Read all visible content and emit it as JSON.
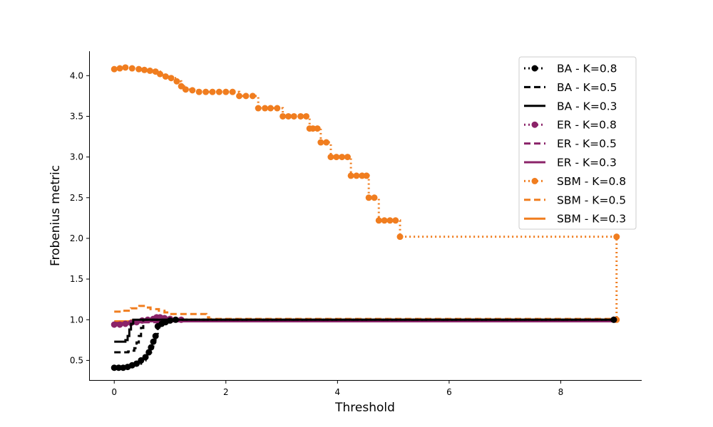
{
  "chart_data": {
    "type": "line",
    "title": "",
    "xlabel": "Threshold",
    "ylabel": "Frobenius metric",
    "xlim": [
      -0.45,
      9.45
    ],
    "ylim": [
      0.25,
      4.3
    ],
    "xticks": [
      0,
      2,
      4,
      6,
      8
    ],
    "yticks": [
      0.5,
      1.0,
      1.5,
      2.0,
      2.5,
      3.0,
      3.5,
      4.0
    ],
    "ytick_labels": [
      "0.5",
      "1.0",
      "1.5",
      "2.0",
      "2.5",
      "3.0",
      "3.5",
      "4.0"
    ],
    "grid": false,
    "legend_position": "top-right",
    "colors": {
      "BA": "#000000",
      "ER": "#8b2369",
      "SBM": "#f07d1f"
    },
    "series": [
      {
        "name": "BA - K=0.8",
        "color": "#000000",
        "style": "dotted",
        "marker": true,
        "x": [
          0,
          0.08,
          0.16,
          0.24,
          0.32,
          0.4,
          0.48,
          0.56,
          0.62,
          0.66,
          0.7,
          0.74,
          0.78,
          0.85,
          0.92,
          1.0,
          1.1,
          8.95
        ],
        "y": [
          0.41,
          0.41,
          0.41,
          0.42,
          0.44,
          0.46,
          0.5,
          0.54,
          0.6,
          0.66,
          0.73,
          0.8,
          0.92,
          0.95,
          0.97,
          0.99,
          1.0,
          1.0
        ]
      },
      {
        "name": "BA - K=0.5",
        "color": "#000000",
        "style": "dashed",
        "marker": false,
        "x": [
          0,
          0.25,
          0.32,
          0.36,
          0.4,
          0.44,
          0.48,
          0.52,
          8.95
        ],
        "y": [
          0.6,
          0.61,
          0.62,
          0.65,
          0.72,
          0.8,
          0.9,
          1.0,
          1.0
        ]
      },
      {
        "name": "BA - K=0.3",
        "color": "#000000",
        "style": "solid",
        "marker": false,
        "x": [
          0,
          0.15,
          0.2,
          0.24,
          0.27,
          0.3,
          0.34,
          8.95
        ],
        "y": [
          0.73,
          0.73,
          0.75,
          0.8,
          0.88,
          0.95,
          1.0,
          1.0
        ]
      },
      {
        "name": "ER - K=0.8",
        "color": "#8b2369",
        "style": "dotted",
        "marker": true,
        "x": [
          0,
          0.1,
          0.2,
          0.3,
          0.4,
          0.5,
          0.6,
          0.7,
          0.76,
          0.82,
          0.9,
          1.0,
          1.2,
          8.95
        ],
        "y": [
          0.94,
          0.94,
          0.95,
          0.96,
          0.97,
          0.99,
          1.0,
          1.01,
          1.03,
          1.03,
          1.02,
          1.01,
          1.0,
          1.0
        ]
      },
      {
        "name": "ER - K=0.5",
        "color": "#8b2369",
        "style": "dashed",
        "marker": false,
        "x": [
          0,
          0.4,
          0.8,
          8.95
        ],
        "y": [
          0.96,
          0.97,
          0.99,
          0.99
        ]
      },
      {
        "name": "ER - K=0.3",
        "color": "#8b2369",
        "style": "solid",
        "marker": false,
        "x": [
          0,
          0.3,
          0.6,
          8.95
        ],
        "y": [
          0.96,
          0.97,
          0.98,
          0.98
        ]
      },
      {
        "name": "SBM - K=0.8",
        "color": "#f07d1f",
        "style": "dotted",
        "marker": true,
        "x": [
          0,
          0.1,
          0.2,
          0.32,
          0.44,
          0.54,
          0.64,
          0.74,
          0.82,
          0.92,
          1.02,
          1.12,
          1.2,
          1.28,
          1.4,
          1.52,
          1.64,
          1.76,
          1.88,
          2.0,
          2.12,
          2.24,
          2.36,
          2.48,
          2.58,
          2.7,
          2.8,
          2.92,
          3.02,
          3.12,
          3.22,
          3.34,
          3.44,
          3.5,
          3.56,
          3.64,
          3.7,
          3.8,
          3.88,
          3.98,
          4.08,
          4.18,
          4.24,
          4.34,
          4.44,
          4.52,
          4.56,
          4.66,
          4.74,
          4.84,
          4.94,
          5.04,
          5.12,
          9.0
        ],
        "y": [
          4.08,
          4.09,
          4.1,
          4.09,
          4.08,
          4.07,
          4.06,
          4.05,
          4.02,
          3.99,
          3.97,
          3.93,
          3.87,
          3.83,
          3.82,
          3.8,
          3.8,
          3.8,
          3.8,
          3.8,
          3.8,
          3.75,
          3.75,
          3.75,
          3.6,
          3.6,
          3.6,
          3.6,
          3.5,
          3.5,
          3.5,
          3.5,
          3.5,
          3.35,
          3.35,
          3.35,
          3.18,
          3.18,
          3.0,
          3.0,
          3.0,
          3.0,
          2.77,
          2.77,
          2.77,
          2.77,
          2.5,
          2.5,
          2.22,
          2.22,
          2.22,
          2.22,
          2.02,
          2.02
        ]
      },
      {
        "name": "SBM - K=0.5",
        "color": "#f07d1f",
        "style": "dashed",
        "marker": false,
        "x": [
          0,
          0.15,
          0.3,
          0.45,
          0.55,
          0.65,
          0.8,
          0.9,
          1.0,
          1.2,
          1.4,
          1.6,
          1.65,
          1.7,
          8.95
        ],
        "y": [
          1.1,
          1.11,
          1.14,
          1.17,
          1.15,
          1.13,
          1.11,
          1.09,
          1.07,
          1.07,
          1.07,
          1.07,
          1.03,
          1.01,
          1.01
        ]
      },
      {
        "name": "SBM - K=0.3",
        "color": "#f07d1f",
        "style": "solid",
        "marker": false,
        "x": [
          0,
          0.15,
          0.3,
          0.5,
          0.7,
          1.0,
          8.95
        ],
        "y": [
          0.98,
          0.98,
          0.99,
          0.99,
          0.99,
          1.0,
          1.0
        ]
      }
    ],
    "extra_points": [
      {
        "series": "SBM - K=0.8",
        "x": 9.0,
        "y": 1.0
      }
    ]
  }
}
